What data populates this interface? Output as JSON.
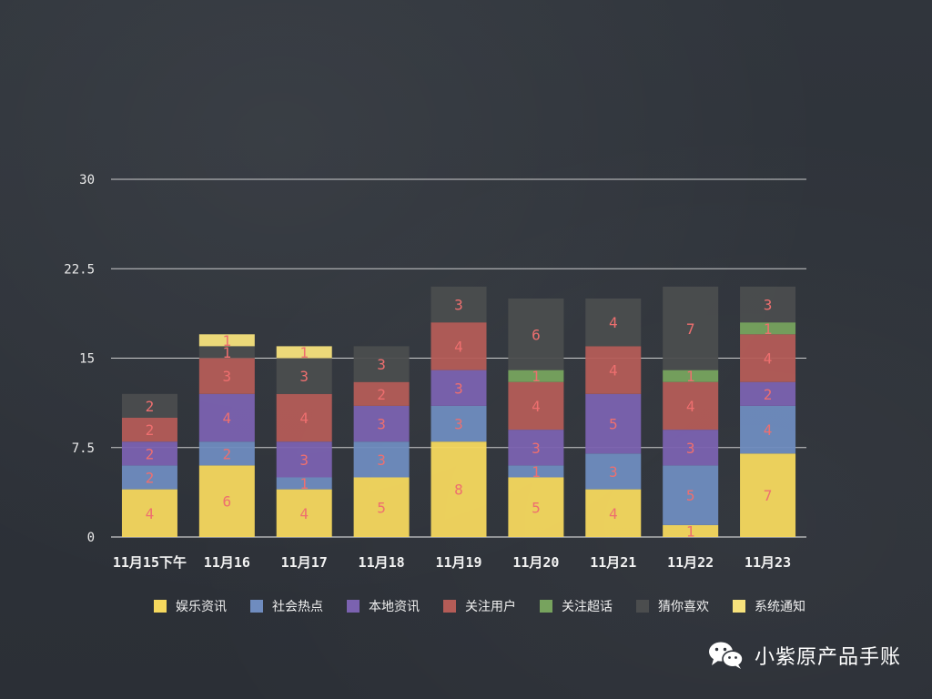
{
  "chart_data": {
    "type": "bar",
    "stacked": true,
    "categories": [
      "11月15下午",
      "11月16",
      "11月17",
      "11月18",
      "11月19",
      "11月20",
      "11月21",
      "11月22",
      "11月23"
    ],
    "ylim": [
      0,
      30
    ],
    "yticks": [
      "0",
      "7.5",
      "15",
      "22.5",
      "30"
    ],
    "grid": true,
    "legend_position": "bottom",
    "series": [
      {
        "name": "娱乐资讯",
        "color": "#f5d85e",
        "values": [
          4,
          6,
          4,
          5,
          8,
          5,
          4,
          1,
          7
        ]
      },
      {
        "name": "社会热点",
        "color": "#6f8cbf",
        "values": [
          2,
          2,
          1,
          3,
          3,
          1,
          3,
          5,
          4
        ]
      },
      {
        "name": "本地资讯",
        "color": "#7b62b0",
        "values": [
          2,
          4,
          3,
          3,
          3,
          3,
          5,
          3,
          2
        ]
      },
      {
        "name": "关注用户",
        "color": "#b45c57",
        "values": [
          2,
          3,
          4,
          2,
          4,
          4,
          4,
          4,
          4
        ]
      },
      {
        "name": "关注超话",
        "color": "#77a35e",
        "values": [
          0,
          0,
          0,
          0,
          0,
          1,
          0,
          1,
          1
        ]
      },
      {
        "name": "猜你喜欢",
        "color": "#4b4d4e",
        "values": [
          2,
          1,
          3,
          3,
          3,
          6,
          4,
          7,
          3
        ]
      },
      {
        "name": "系统通知",
        "color": "#f7e27c",
        "values": [
          0,
          1,
          1,
          0,
          0,
          0,
          0,
          0,
          0
        ]
      }
    ],
    "label_color": "#ee6f6f"
  },
  "watermark": {
    "icon": "wechat-icon",
    "text": "小紫原产品手账"
  }
}
